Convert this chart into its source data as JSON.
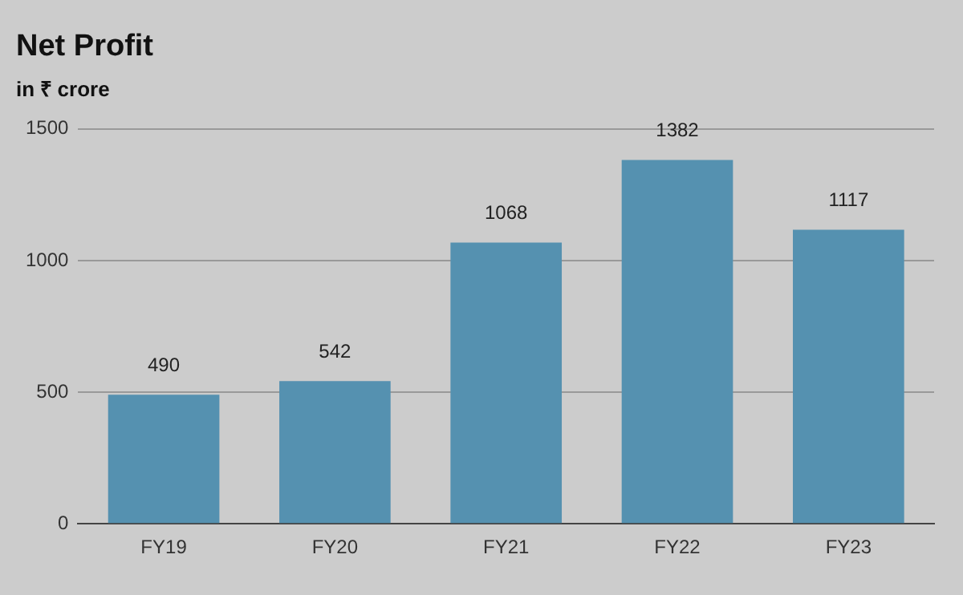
{
  "chart_data": {
    "type": "bar",
    "title": "Net Profit",
    "subtitle": "in ₹ crore",
    "categories": [
      "FY19",
      "FY20",
      "FY21",
      "FY22",
      "FY23"
    ],
    "values": [
      490,
      542,
      1068,
      1382,
      1117
    ],
    "color": "#5591b0",
    "ylim": [
      0,
      1500
    ],
    "yticks": [
      0,
      500,
      1000,
      1500
    ],
    "grid": "y",
    "data_labels": true
  }
}
